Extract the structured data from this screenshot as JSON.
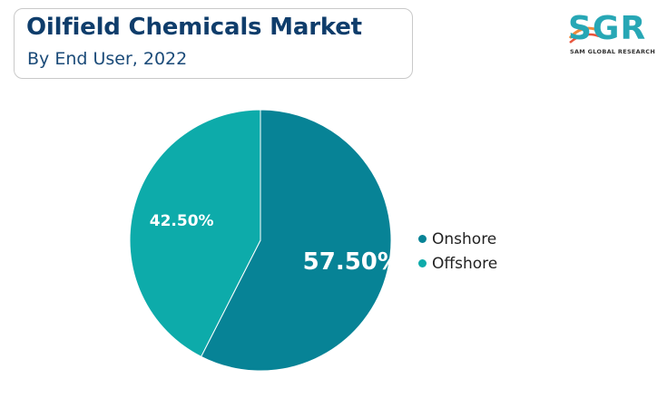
{
  "header": {
    "title": "Oilfield Chemicals Market",
    "subtitle": "By End User, 2022"
  },
  "logo": {
    "mark": "SGR",
    "name": "SAM GLOBAL RESEARCH",
    "color": "#27a7b5"
  },
  "chart_data": {
    "type": "pie",
    "title": "Oilfield Chemicals Market",
    "subtitle": "By End User, 2022",
    "legend_position": "right",
    "slices": [
      {
        "name": "Onshore",
        "value": 57.5,
        "label": "57.50%",
        "color": "#078396"
      },
      {
        "name": "Offshore",
        "value": 42.5,
        "label": "42.50%",
        "color": "#0dabaa"
      }
    ]
  }
}
